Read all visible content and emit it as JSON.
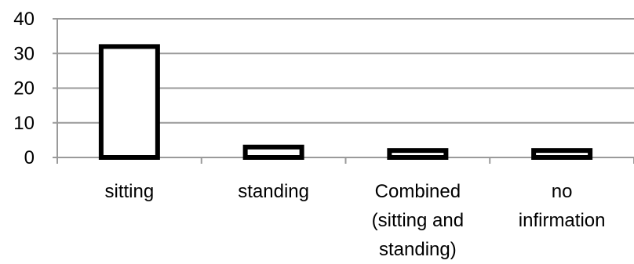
{
  "chart_data": {
    "type": "bar",
    "categories": [
      "sitting",
      "standing",
      "Combined (sitting and standing)",
      "no infirmation"
    ],
    "category_lines": [
      [
        "sitting"
      ],
      [
        "standing"
      ],
      [
        "Combined",
        "(sitting and",
        "standing)"
      ],
      [
        "no",
        "infirmation"
      ]
    ],
    "values": [
      32,
      3,
      2,
      2
    ],
    "ylim": [
      0,
      40
    ],
    "yticks": [
      "0",
      "10",
      "20",
      "30",
      "40"
    ],
    "grid": true,
    "bar_fill": "#ffffff",
    "bar_stroke": "#000000",
    "grid_color": "#9a9a9a"
  }
}
